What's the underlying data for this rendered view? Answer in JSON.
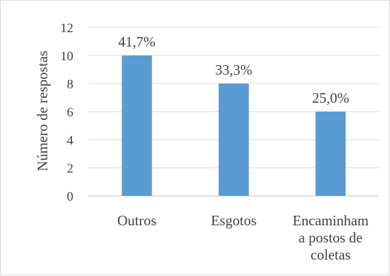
{
  "chart_data": {
    "type": "bar",
    "categories": [
      [
        "Outros"
      ],
      [
        "Esgotos"
      ],
      [
        "Encaminham",
        "a postos de",
        "coletas"
      ]
    ],
    "values": [
      10,
      8,
      6
    ],
    "data_labels": [
      "41,7%",
      "33,3%",
      "25,0%"
    ],
    "ylabel": "Número de respostas",
    "ylim": [
      0,
      12
    ],
    "yticks": [
      "0",
      "2",
      "4",
      "6",
      "8",
      "10",
      "12"
    ],
    "grid": true,
    "legend": "none",
    "colors": {
      "bar": "#5b9bd5",
      "grid": "#d9d9d9",
      "axis": "#bfbfbf",
      "text": "#404040"
    }
  }
}
